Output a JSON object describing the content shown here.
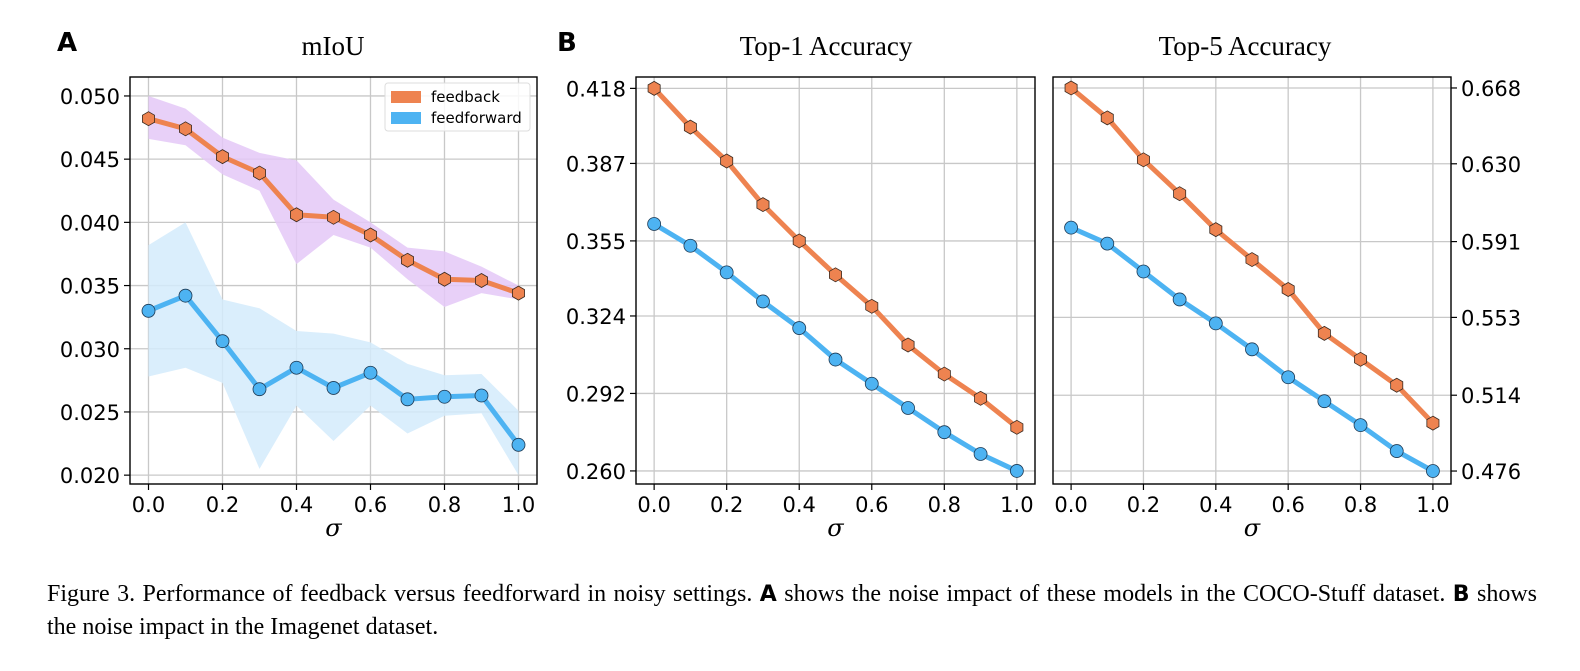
{
  "figure": {
    "panel_labels": [
      "A",
      "B"
    ],
    "caption": {
      "prefix": "Figure 3.  Performance of feedback versus feedforward in noisy settings.  ",
      "bold_a": "A",
      "part_a": " shows the noise impact of these models in the COCO-Stuff dataset. ",
      "bold_b": "B",
      "part_b": " shows the noise impact in the Imagenet dataset."
    }
  },
  "colors": {
    "feedback": "#EE8350",
    "feedforward": "#4DB3F2",
    "feedback_band": "#E4C8F7",
    "feedforward_band": "#D3EBFB"
  },
  "chart_data": [
    {
      "type": "line",
      "panel": "A",
      "title": "mIoU",
      "xlabel": "σ",
      "ylabel": "",
      "x": [
        0.0,
        0.1,
        0.2,
        0.3,
        0.4,
        0.5,
        0.6,
        0.7,
        0.8,
        0.9,
        1.0
      ],
      "xticks": [
        "0.0",
        "0.2",
        "0.4",
        "0.6",
        "0.8",
        "1.0"
      ],
      "yticks": [
        "0.050",
        "0.045",
        "0.040",
        "0.035",
        "0.030",
        "0.025",
        "0.020"
      ],
      "ylim": [
        0.0193,
        0.0515
      ],
      "xlim": [
        -0.05,
        1.05
      ],
      "yaxis_side": "left",
      "grid": true,
      "legend": {
        "position": "top-right",
        "entries": [
          "feedback",
          "feedforward"
        ]
      },
      "series": [
        {
          "name": "feedback",
          "marker": "hexagon",
          "values": [
            0.0482,
            0.0474,
            0.0452,
            0.0439,
            0.0406,
            0.0404,
            0.039,
            0.037,
            0.0355,
            0.0354,
            0.0344
          ],
          "band_upper": [
            0.05,
            0.049,
            0.0467,
            0.0455,
            0.0449,
            0.0418,
            0.04,
            0.038,
            0.0377,
            0.0365,
            0.035
          ],
          "band_lower": [
            0.0466,
            0.0461,
            0.0438,
            0.0425,
            0.0367,
            0.039,
            0.038,
            0.0355,
            0.0333,
            0.0344,
            0.0339
          ]
        },
        {
          "name": "feedforward",
          "marker": "circle",
          "values": [
            0.033,
            0.0342,
            0.0306,
            0.0268,
            0.0285,
            0.0269,
            0.0281,
            0.026,
            0.0262,
            0.0263,
            0.0224
          ],
          "band_upper": [
            0.0382,
            0.04,
            0.0339,
            0.0332,
            0.0314,
            0.0312,
            0.0305,
            0.0288,
            0.0279,
            0.028,
            0.0251
          ],
          "band_lower": [
            0.0278,
            0.0285,
            0.0273,
            0.0205,
            0.0255,
            0.0227,
            0.0255,
            0.0233,
            0.0247,
            0.0249,
            0.02
          ]
        }
      ]
    },
    {
      "type": "line",
      "panel": "B",
      "title": "Top-1 Accuracy",
      "xlabel": "σ",
      "ylabel": "",
      "x": [
        0.0,
        0.1,
        0.2,
        0.3,
        0.4,
        0.5,
        0.6,
        0.7,
        0.8,
        0.9,
        1.0
      ],
      "xticks": [
        "0.0",
        "0.2",
        "0.4",
        "0.6",
        "0.8",
        "1.0"
      ],
      "yticks": [
        "0.418",
        "0.387",
        "0.355",
        "0.324",
        "0.292",
        "0.260"
      ],
      "ylim": [
        0.2546,
        0.4227
      ],
      "xlim": [
        -0.05,
        1.05
      ],
      "yaxis_side": "left",
      "grid": true,
      "series": [
        {
          "name": "feedback",
          "marker": "hexagon",
          "values": [
            0.418,
            0.402,
            0.388,
            0.37,
            0.355,
            0.341,
            0.328,
            0.312,
            0.3,
            0.29,
            0.278
          ]
        },
        {
          "name": "feedforward",
          "marker": "circle",
          "values": [
            0.362,
            0.353,
            0.342,
            0.33,
            0.319,
            0.306,
            0.296,
            0.286,
            0.276,
            0.267,
            0.26
          ]
        }
      ]
    },
    {
      "type": "line",
      "panel": "B",
      "title": "Top-5 Accuracy",
      "xlabel": "σ",
      "ylabel": "",
      "x": [
        0.0,
        0.1,
        0.2,
        0.3,
        0.4,
        0.5,
        0.6,
        0.7,
        0.8,
        0.9,
        1.0
      ],
      "xticks": [
        "0.0",
        "0.2",
        "0.4",
        "0.6",
        "0.8",
        "1.0"
      ],
      "yticks": [
        "0.668",
        "0.630",
        "0.591",
        "0.553",
        "0.514",
        "0.476"
      ],
      "ylim": [
        0.4695,
        0.6735
      ],
      "xlim": [
        -0.05,
        1.05
      ],
      "yaxis_side": "right",
      "grid": true,
      "series": [
        {
          "name": "feedback",
          "marker": "hexagon",
          "values": [
            0.668,
            0.653,
            0.632,
            0.615,
            0.597,
            0.582,
            0.567,
            0.545,
            0.532,
            0.519,
            0.5
          ]
        },
        {
          "name": "feedforward",
          "marker": "circle",
          "values": [
            0.598,
            0.59,
            0.576,
            0.562,
            0.55,
            0.537,
            0.523,
            0.511,
            0.499,
            0.486,
            0.476
          ]
        }
      ]
    }
  ]
}
